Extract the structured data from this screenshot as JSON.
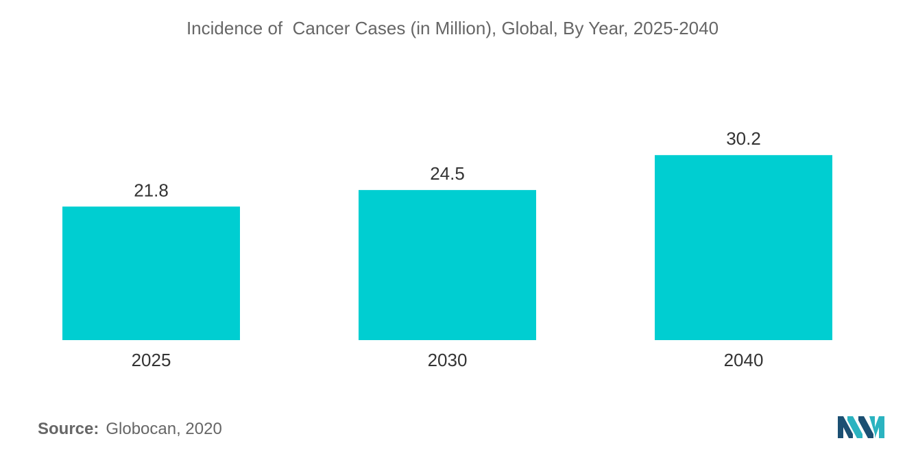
{
  "chart_data": {
    "type": "bar",
    "title": "Incidence of  Cancer Cases (in Million), Global, By Year, 2025-2040",
    "categories": [
      "2025",
      "2030",
      "2040"
    ],
    "values": [
      21.8,
      24.5,
      30.2
    ],
    "value_labels": [
      "21.8",
      "24.5",
      "30.2"
    ],
    "xlabel": "",
    "ylabel": "",
    "ylim": [
      0,
      45
    ],
    "grid": false,
    "legend": "none",
    "bar_color": "#00CED1"
  },
  "source": {
    "label": "Source:",
    "value": "Globocan, 2020"
  },
  "logo": {
    "icon": "mordor-intelligence-logo",
    "colors": [
      "#1B4F72",
      "#2BB3C0"
    ]
  }
}
